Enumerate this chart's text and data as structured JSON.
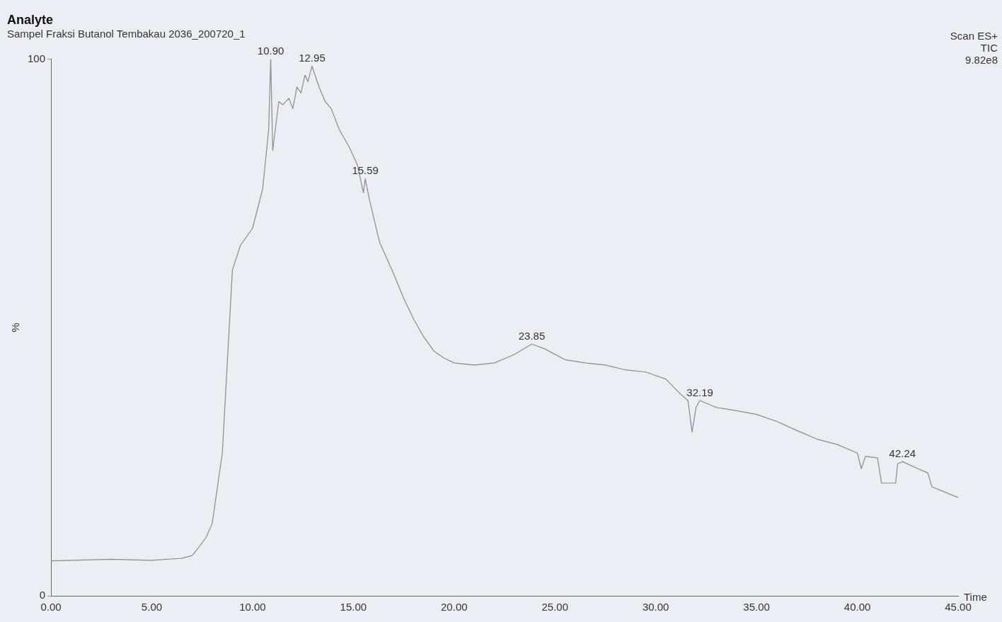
{
  "chart_data": {
    "type": "line",
    "title": "Analyte",
    "subtitle": "Sampel Fraksi Butanol Tembakau 2036_200720_1",
    "xlabel": "Time",
    "ylabel": "%",
    "x": [
      0,
      3,
      5,
      6.5,
      7,
      7.3,
      7.7,
      8,
      8.5,
      9,
      9.4,
      10,
      10.5,
      10.8,
      10.9,
      11,
      11.3,
      11.5,
      11.8,
      12,
      12.2,
      12.4,
      12.6,
      12.75,
      12.95,
      13.3,
      13.6,
      13.9,
      14.3,
      14.8,
      15.2,
      15.5,
      15.59,
      15.8,
      16.3,
      17,
      17.5,
      18,
      18.5,
      19,
      19.5,
      20,
      21,
      22,
      23,
      23.85,
      24.5,
      25.5,
      26.5,
      27.5,
      28.5,
      29.5,
      30.5,
      31.2,
      31.6,
      31.8,
      32,
      32.19,
      33,
      34,
      35,
      36,
      37,
      38,
      39,
      40,
      40.2,
      40.4,
      41,
      41.2,
      41.9,
      42,
      42.24,
      43,
      43.5,
      43.7,
      44.3,
      45
    ],
    "series": [
      {
        "color": "#8a8a8a",
        "values": [
          6.5,
          6.8,
          6.6,
          7,
          7.5,
          8.9,
          10.9,
          13.5,
          26.6,
          60.7,
          65.3,
          68.5,
          75.8,
          86.9,
          100,
          83,
          92.1,
          91.5,
          92.7,
          90.8,
          94.8,
          93.7,
          97,
          95.8,
          98.7,
          94.8,
          92.1,
          90.8,
          86.9,
          83.6,
          80.3,
          75.1,
          77.7,
          73.8,
          65.9,
          60,
          55.4,
          51.5,
          48.2,
          45.6,
          44.3,
          43.4,
          43,
          43.4,
          45,
          46.9,
          46,
          44,
          43.4,
          43,
          42.1,
          41.7,
          40.4,
          37.7,
          36.4,
          30.5,
          35.1,
          36.4,
          35.1,
          34.5,
          33.8,
          32.5,
          30.8,
          29.2,
          28.2,
          26.6,
          23.7,
          26,
          25.7,
          21,
          21,
          24.6,
          25,
          23.7,
          22.9,
          20.3,
          19.4,
          18.3
        ]
      }
    ],
    "xlim": [
      0,
      45
    ],
    "ylim": [
      0,
      100
    ],
    "xticks": [
      {
        "value": 0,
        "label": "0.00"
      },
      {
        "value": 5,
        "label": "5.00"
      },
      {
        "value": 10,
        "label": "10.00"
      },
      {
        "value": 15,
        "label": "15.00"
      },
      {
        "value": 20,
        "label": "20.00"
      },
      {
        "value": 25,
        "label": "25.00"
      },
      {
        "value": 30,
        "label": "30.00"
      },
      {
        "value": 35,
        "label": "35.00"
      },
      {
        "value": 40,
        "label": "40.00"
      },
      {
        "value": 45,
        "label": "45.00"
      }
    ],
    "yticks": [
      0,
      100
    ],
    "grid": false,
    "legend": false,
    "annotations": [
      "Scan ES+",
      "TIC",
      "9.82e8",
      {
        "text": "10.90",
        "x": 10.9,
        "y": 100
      },
      {
        "text": "12.95",
        "x": 12.95,
        "y": 98.7
      },
      {
        "text": "15.59",
        "x": 15.59,
        "y": 77.7
      },
      {
        "text": "23.85",
        "x": 23.85,
        "y": 46.9
      },
      {
        "text": "32.19",
        "x": 32.19,
        "y": 36.4
      },
      {
        "text": "42.24",
        "x": 42.24,
        "y": 25
      }
    ]
  }
}
